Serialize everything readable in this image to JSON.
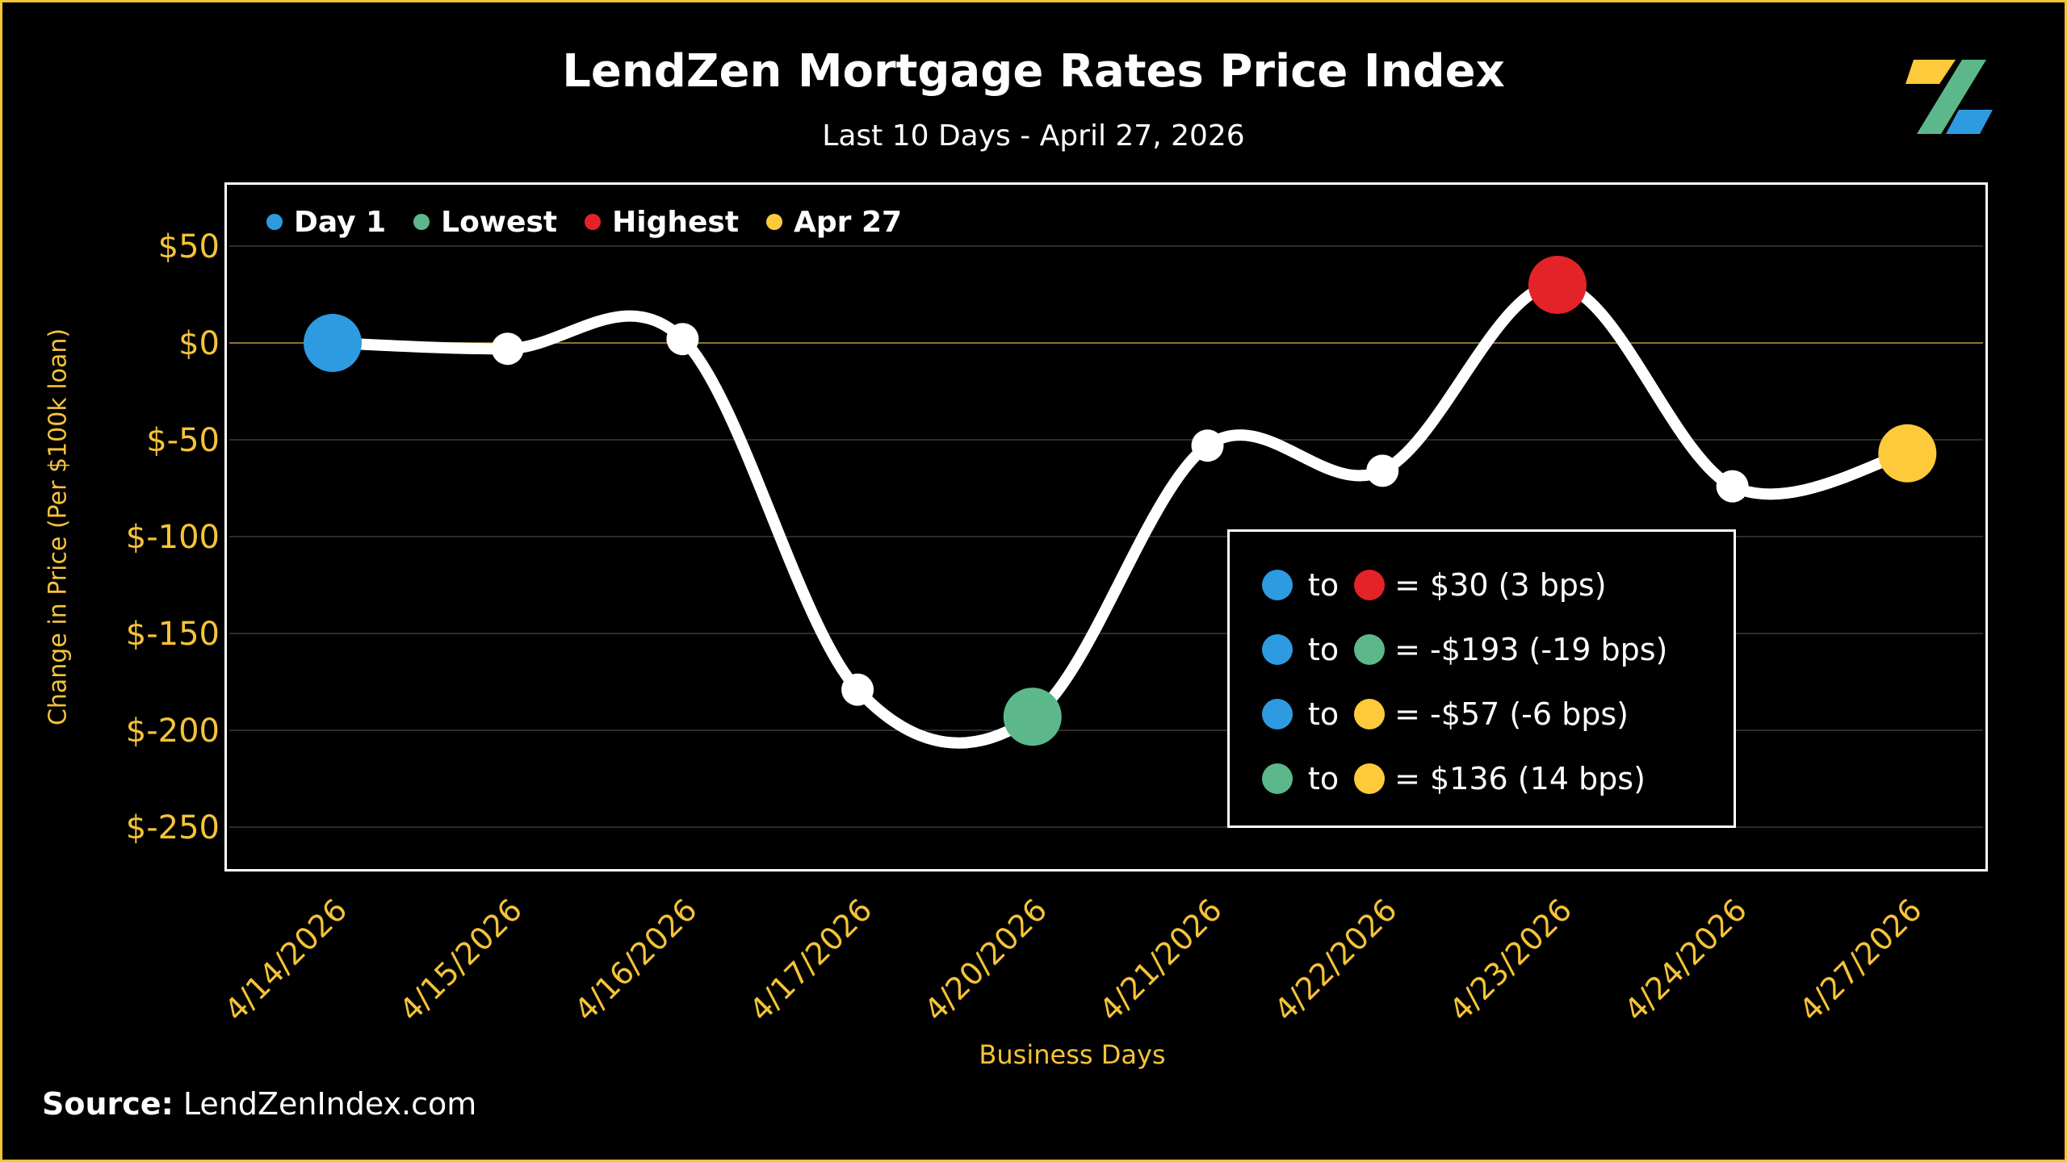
{
  "title": "LendZen Mortgage Rates Price Index",
  "subtitle": "Last 10 Days - April 27, 2026",
  "source_label": "Source:",
  "source_value": "LendZenIndex.com",
  "colors": {
    "accent": "#f5c338",
    "day1": "#2e9be0",
    "lowest": "#5cb88a",
    "highest": "#e42328",
    "latest": "#fcca3a",
    "line": "#ffffff",
    "logo_green": "#5cb88a",
    "logo_blue": "#2e9be0",
    "logo_yellow": "#fcca3a"
  },
  "legend": [
    {
      "label": "Day 1",
      "color": "#2e9be0"
    },
    {
      "label": "Lowest",
      "color": "#5cb88a"
    },
    {
      "label": "Highest",
      "color": "#e42328"
    },
    {
      "label": "Apr 27",
      "color": "#fcca3a"
    }
  ],
  "summary": [
    {
      "from": "#2e9be0",
      "to": "#e42328",
      "to_word": "to",
      "eq": "=",
      "value": " $30 (3 bps)"
    },
    {
      "from": "#2e9be0",
      "to": "#5cb88a",
      "to_word": "to",
      "eq": "=",
      "value": "-$193 (-19 bps)"
    },
    {
      "from": "#2e9be0",
      "to": "#fcca3a",
      "to_word": "to",
      "eq": "=",
      "value": "-$57 (-6 bps)"
    },
    {
      "from": "#5cb88a",
      "to": "#fcca3a",
      "to_word": "to",
      "eq": "=",
      "value": " $136 (14 bps)"
    }
  ],
  "chart_data": {
    "type": "line",
    "x": [
      "4/14/2026",
      "4/15/2026",
      "4/16/2026",
      "4/17/2026",
      "4/20/2026",
      "4/21/2026",
      "4/22/2026",
      "4/23/2026",
      "4/24/2026",
      "4/27/2026"
    ],
    "y": [
      0,
      -3,
      2,
      -179,
      -193,
      -53,
      -66,
      30,
      -74,
      -57
    ],
    "highlight": {
      "0": "day1",
      "4": "lowest",
      "7": "highest",
      "9": "latest"
    },
    "xlabel": "Business Days",
    "ylabel": "Change in Price (Per $100k loan)",
    "ylim": [
      -270,
      70
    ],
    "yticks": [
      50,
      0,
      -50,
      -100,
      -150,
      -200,
      -250
    ],
    "ytick_labels": [
      "$50",
      "$0",
      "$-50",
      "$-100",
      "$-150",
      "$-200",
      "$-250"
    ],
    "grid": true,
    "legend_position": "top-left"
  }
}
